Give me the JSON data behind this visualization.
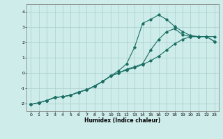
{
  "xlabel": "Humidex (Indice chaleur)",
  "xlim": [
    -0.5,
    23.5
  ],
  "ylim": [
    -2.5,
    4.5
  ],
  "yticks": [
    -2,
    -1,
    0,
    1,
    2,
    3,
    4
  ],
  "xticks": [
    0,
    1,
    2,
    3,
    4,
    5,
    6,
    7,
    8,
    9,
    10,
    11,
    12,
    13,
    14,
    15,
    16,
    17,
    18,
    19,
    20,
    21,
    22,
    23
  ],
  "bg_color": "#cdecea",
  "grid_color": "#aacfcc",
  "line_color": "#1a6e63",
  "line1_x": [
    0,
    1,
    2,
    3,
    4,
    5,
    6,
    7,
    8,
    9,
    10,
    11,
    12,
    13,
    14,
    15,
    16,
    17,
    18,
    19,
    20,
    21,
    22,
    23
  ],
  "line1_y": [
    -2.05,
    -1.95,
    -1.8,
    -1.6,
    -1.55,
    -1.45,
    -1.25,
    -1.1,
    -0.85,
    -0.55,
    -0.2,
    0.15,
    0.6,
    1.7,
    3.25,
    3.5,
    3.8,
    3.5,
    3.05,
    2.7,
    2.45,
    2.38,
    2.38,
    2.38
  ],
  "line2_x": [
    0,
    1,
    2,
    3,
    4,
    5,
    6,
    7,
    8,
    9,
    10,
    11,
    12,
    13,
    14,
    15,
    16,
    17,
    18,
    19,
    20,
    21,
    22,
    23
  ],
  "line2_y": [
    -2.05,
    -1.95,
    -1.8,
    -1.6,
    -1.55,
    -1.45,
    -1.25,
    -1.1,
    -0.85,
    -0.55,
    -0.2,
    0.0,
    0.25,
    0.4,
    0.6,
    1.5,
    2.2,
    2.7,
    2.9,
    2.5,
    2.38,
    2.38,
    2.38,
    2.05
  ],
  "line3_x": [
    0,
    1,
    2,
    3,
    4,
    5,
    6,
    7,
    8,
    9,
    10,
    11,
    12,
    13,
    14,
    15,
    16,
    17,
    18,
    19,
    20,
    21,
    22,
    23
  ],
  "line3_y": [
    -2.05,
    -1.95,
    -1.8,
    -1.6,
    -1.55,
    -1.45,
    -1.25,
    -1.1,
    -0.85,
    -0.55,
    -0.2,
    0.0,
    0.2,
    0.35,
    0.55,
    0.8,
    1.1,
    1.5,
    1.9,
    2.2,
    2.38,
    2.38,
    2.38,
    2.05
  ]
}
